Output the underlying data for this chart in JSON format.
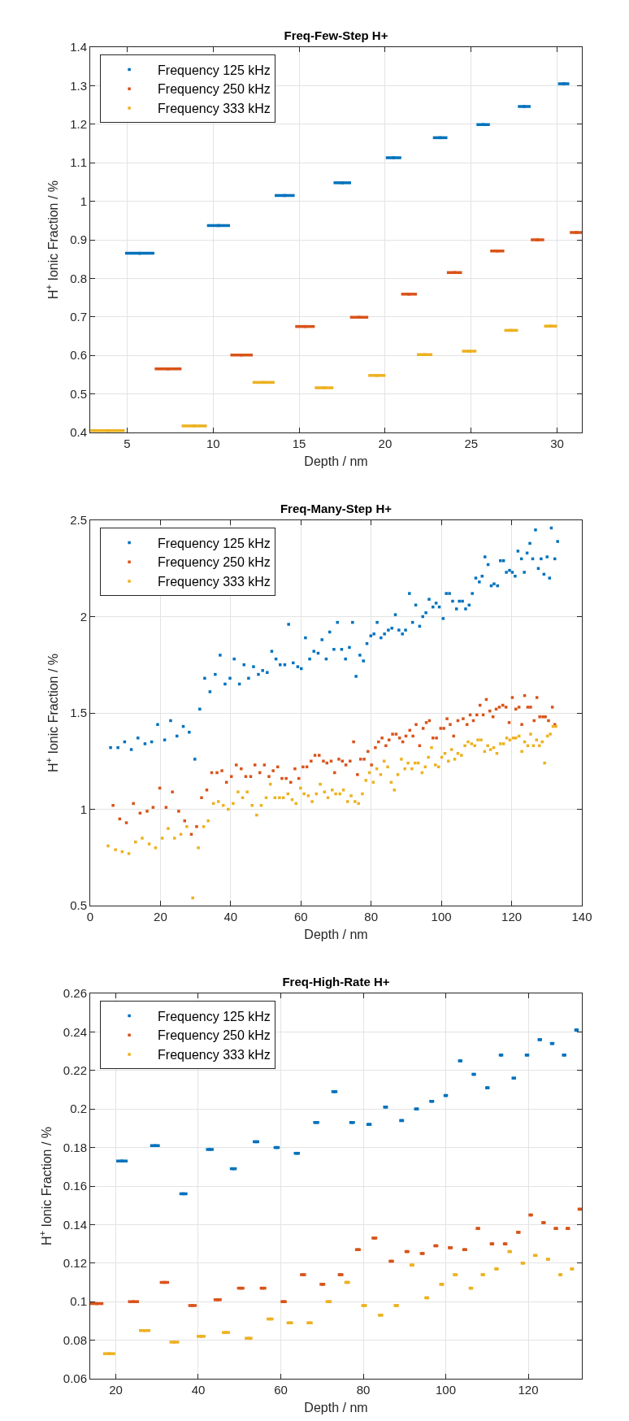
{
  "chart_data": [
    {
      "type": "scatter",
      "title": "Freq-Few-Step H+",
      "xlabel": "Depth / nm",
      "ylabel": "H$^{+}$ Ionic Fraction / %",
      "xlim": [
        2.85,
        31.44
      ],
      "xticks": [
        5,
        10,
        15,
        20,
        25,
        30
      ],
      "ylim": [
        0.4,
        1.4
      ],
      "yticks": [
        0.4,
        0.5,
        0.6,
        0.7,
        0.8,
        0.9,
        1,
        1.1,
        1.2,
        1.3,
        1.4
      ],
      "grid": true,
      "legend": "top left",
      "series": [
        {
          "name": "Frequency 125 kHz",
          "color": "#0072bd",
          "x": [
            5.73,
            10.31,
            14.16,
            17.51,
            20.49,
            23.2,
            25.7,
            28.09,
            30.38
          ],
          "values": [
            0.865,
            0.937,
            1.015,
            1.048,
            1.113,
            1.165,
            1.199,
            1.246,
            1.305
          ],
          "xerrors": [
            0.85,
            0.67,
            0.58,
            0.51,
            0.45,
            0.42,
            0.39,
            0.37,
            0.33
          ]
        },
        {
          "name": "Frequency 250 kHz",
          "color": "#d95319",
          "x": [
            7.38,
            11.65,
            15.34,
            18.49,
            21.39,
            24.03,
            26.52,
            28.86,
            31.11
          ],
          "values": [
            0.565,
            0.601,
            0.675,
            0.699,
            0.759,
            0.815,
            0.871,
            0.9,
            0.919
          ],
          "xerrors": [
            0.78,
            0.65,
            0.57,
            0.53,
            0.46,
            0.44,
            0.41,
            0.39,
            0.37
          ]
        },
        {
          "name": "Frequency 333 kHz",
          "color": "#edb120",
          "x": [
            3.86,
            8.9,
            12.93,
            16.45,
            19.52,
            22.3,
            24.89,
            27.33,
            29.62
          ],
          "values": [
            0.405,
            0.417,
            0.53,
            0.516,
            0.548,
            0.602,
            0.611,
            0.665,
            0.676
          ],
          "xerrors": [
            1.0,
            0.73,
            0.64,
            0.54,
            0.5,
            0.45,
            0.42,
            0.4,
            0.38
          ]
        }
      ]
    },
    {
      "type": "scatter",
      "title": "Freq-Many-Step H+",
      "xlabel": "Depth / nm",
      "ylabel": "H$^{+}$ Ionic Fraction / %",
      "xlim": [
        0,
        140
      ],
      "xticks": [
        0,
        20,
        40,
        60,
        80,
        100,
        120,
        140
      ],
      "ylim": [
        0.5,
        2.5
      ],
      "yticks": [
        0.5,
        1,
        1.5,
        2,
        2.5
      ],
      "grid": true,
      "legend": "top left",
      "marker": "square",
      "series": [
        {
          "name": "Frequency 125 kHz",
          "color": "#0072bd",
          "x": [
            5.8,
            7.9,
            9.8,
            11.7,
            13.6,
            15.6,
            17.5,
            19.2,
            21.2,
            22.9,
            24.7,
            26.5,
            28.2,
            29.8,
            31.2,
            32.6,
            34.1,
            35.6,
            37.0,
            38.4,
            39.8,
            41.0,
            42.5,
            43.8,
            45.1,
            46.5,
            47.9,
            49.1,
            50.4,
            51.7,
            52.9,
            54.1,
            55.4,
            56.5,
            57.8,
            59.1,
            60.1,
            61.3,
            62.5,
            63.7,
            64.9,
            66.0,
            67.2,
            68.2,
            69.4,
            70.4,
            71.6,
            72.7,
            73.8,
            74.7,
            75.7,
            76.8,
            77.8,
            78.8,
            79.9,
            80.8,
            81.7,
            82.8,
            83.8,
            84.9,
            85.9,
            86.9,
            87.9,
            88.9,
            89.8,
            90.9,
            91.8,
            92.7,
            93.8,
            94.7,
            95.6,
            96.5,
            97.6,
            98.5,
            99.4,
            100.5,
            101.4,
            102.3,
            103.2,
            104.3,
            105.1,
            106.0,
            106.9,
            107.9,
            108.8,
            109.8,
            110.8,
            111.6,
            112.4,
            113.3,
            114.2,
            115.0,
            116.0,
            116.8,
            117.7,
            118.5,
            119.4,
            120.2,
            121.0,
            121.8,
            122.8,
            123.6,
            124.4,
            125.2,
            126.0,
            126.8,
            127.6,
            128.4,
            129.2,
            130.1,
            130.8,
            131.3,
            132.3,
            133.1
          ],
          "values": [
            1.32,
            1.32,
            1.35,
            1.31,
            1.37,
            1.34,
            1.35,
            1.44,
            1.36,
            1.46,
            1.38,
            1.43,
            1.4,
            1.26,
            1.52,
            1.68,
            1.61,
            1.7,
            1.8,
            1.65,
            1.68,
            1.78,
            1.65,
            1.75,
            1.68,
            1.74,
            1.7,
            1.72,
            1.71,
            1.82,
            1.78,
            1.75,
            1.75,
            1.96,
            1.76,
            1.74,
            1.73,
            1.89,
            1.78,
            1.82,
            1.81,
            1.88,
            1.78,
            1.92,
            1.83,
            1.97,
            1.83,
            1.78,
            1.84,
            1.97,
            1.69,
            1.8,
            1.77,
            1.86,
            1.9,
            1.91,
            1.97,
            1.89,
            1.91,
            1.93,
            1.94,
            2.01,
            1.93,
            1.91,
            1.93,
            2.12,
            1.97,
            2.06,
            1.95,
            2.0,
            2.02,
            2.09,
            2.05,
            2.07,
            2.05,
            1.99,
            2.12,
            2.12,
            2.08,
            2.04,
            2.08,
            2.08,
            2.04,
            2.06,
            2.12,
            2.2,
            2.18,
            2.21,
            2.31,
            2.27,
            2.16,
            2.17,
            2.16,
            2.29,
            2.29,
            2.23,
            2.24,
            2.23,
            2.21,
            2.34,
            2.3,
            2.23,
            2.33,
            2.38,
            2.3,
            2.45,
            2.25,
            2.3,
            2.22,
            2.31,
            2.2,
            2.46,
            2.3,
            2.39
          ]
        },
        {
          "name": "Frequency 250 kHz",
          "color": "#d95319",
          "x": [
            6.5,
            8.4,
            10.3,
            12.3,
            14.2,
            16.2,
            17.9,
            19.8,
            21.6,
            23.4,
            25.2,
            26.9,
            28.8,
            30.3,
            31.7,
            33.2,
            34.6,
            36.1,
            37.5,
            38.8,
            40.2,
            41.6,
            43.0,
            44.3,
            45.7,
            46.9,
            48.3,
            49.6,
            50.9,
            52.1,
            53.4,
            54.6,
            55.8,
            57.1,
            58.3,
            59.4,
            60.6,
            61.7,
            62.9,
            64.0,
            65.2,
            66.4,
            67.4,
            68.6,
            69.6,
            70.8,
            71.8,
            72.8,
            74.0,
            75.0,
            76.1,
            77.0,
            78.0,
            79.1,
            80.1,
            81.2,
            82.1,
            83.1,
            84.2,
            85.1,
            86.1,
            87.1,
            88.1,
            89.0,
            89.9,
            91.0,
            91.9,
            92.8,
            93.8,
            94.8,
            95.7,
            96.6,
            97.6,
            98.6,
            99.8,
            100.7,
            101.6,
            102.5,
            103.5,
            104.7,
            106.2,
            107.3,
            108.2,
            109.1,
            110.1,
            111.0,
            111.9,
            112.8,
            113.8,
            114.7,
            115.6,
            116.5,
            117.5,
            118.4,
            119.3,
            120.2,
            121.2,
            122.1,
            122.9,
            123.7,
            124.6,
            125.4,
            126.4,
            127.2,
            128.0,
            128.9,
            129.6,
            130.5,
            131.6,
            132.3
          ],
          "values": [
            1.02,
            0.95,
            0.93,
            1.03,
            0.98,
            0.99,
            1.01,
            1.11,
            1.01,
            1.09,
            0.99,
            0.94,
            0.87,
            0.91,
            1.06,
            1.1,
            1.19,
            1.19,
            1.2,
            1.14,
            1.17,
            1.23,
            1.21,
            1.17,
            1.17,
            1.23,
            1.19,
            1.23,
            1.17,
            1.2,
            1.22,
            1.16,
            1.16,
            1.14,
            1.21,
            1.16,
            1.22,
            1.22,
            1.25,
            1.28,
            1.28,
            1.25,
            1.24,
            1.25,
            1.19,
            1.26,
            1.25,
            1.23,
            1.25,
            1.35,
            1.18,
            1.26,
            1.26,
            1.3,
            1.23,
            1.32,
            1.35,
            1.37,
            1.33,
            1.36,
            1.39,
            1.39,
            1.37,
            1.35,
            1.38,
            1.41,
            1.38,
            1.44,
            1.33,
            1.42,
            1.45,
            1.46,
            1.37,
            1.37,
            1.42,
            1.42,
            1.47,
            1.44,
            1.38,
            1.46,
            1.47,
            1.44,
            1.49,
            1.46,
            1.49,
            1.54,
            1.49,
            1.57,
            1.51,
            1.48,
            1.52,
            1.53,
            1.54,
            1.53,
            1.45,
            1.58,
            1.52,
            1.53,
            1.44,
            1.59,
            1.53,
            1.53,
            1.46,
            1.58,
            1.48,
            1.48,
            1.48,
            1.46,
            1.53,
            1.44
          ]
        },
        {
          "name": "Frequency 333 kHz",
          "color": "#edb120",
          "x": [
            5.1,
            7.2,
            9.1,
            11.0,
            12.9,
            14.8,
            16.8,
            18.6,
            20.5,
            22.2,
            24.0,
            25.8,
            27.5,
            29.2,
            30.8,
            32.3,
            33.6,
            35.1,
            36.5,
            37.9,
            39.3,
            40.7,
            42.1,
            43.4,
            44.7,
            46.1,
            47.4,
            48.7,
            50.1,
            51.3,
            52.6,
            53.9,
            55.0,
            56.3,
            57.5,
            58.6,
            59.9,
            60.9,
            62.1,
            63.2,
            64.4,
            65.5,
            66.7,
            67.7,
            68.9,
            69.9,
            71.1,
            72.1,
            73.3,
            74.3,
            75.4,
            76.4,
            77.5,
            78.5,
            79.5,
            80.6,
            81.6,
            82.7,
            83.7,
            84.7,
            85.7,
            86.6,
            87.6,
            88.6,
            89.6,
            90.5,
            91.6,
            92.5,
            93.4,
            94.5,
            95.4,
            96.3,
            97.2,
            98.3,
            99.2,
            100.1,
            101.0,
            102.0,
            102.9,
            103.8,
            104.7,
            105.7,
            106.7,
            107.6,
            108.6,
            109.5,
            110.4,
            111.3,
            112.3,
            113.2,
            114.0,
            114.9,
            115.8,
            116.8,
            117.7,
            118.6,
            119.5,
            120.5,
            121.2,
            122.1,
            122.9,
            123.7,
            124.6,
            125.4,
            126.2,
            127.1,
            127.9,
            128.7,
            129.4,
            130.2,
            131.0,
            131.8,
            132.6
          ],
          "values": [
            0.81,
            0.79,
            0.78,
            0.77,
            0.83,
            0.85,
            0.82,
            0.8,
            0.85,
            0.9,
            0.85,
            0.87,
            0.91,
            0.54,
            0.8,
            0.91,
            0.94,
            1.03,
            1.04,
            1.02,
            1.0,
            1.03,
            1.09,
            1.06,
            1.09,
            1.02,
            0.97,
            1.02,
            1.06,
            1.13,
            1.06,
            1.06,
            1.06,
            1.08,
            1.05,
            1.03,
            1.11,
            1.08,
            1.07,
            1.04,
            1.08,
            1.13,
            1.09,
            1.06,
            1.1,
            1.08,
            1.08,
            1.1,
            1.04,
            1.07,
            1.04,
            1.03,
            1.08,
            1.15,
            1.19,
            1.14,
            1.21,
            1.18,
            1.25,
            1.22,
            1.14,
            1.1,
            1.18,
            1.26,
            1.21,
            1.24,
            1.21,
            1.24,
            1.24,
            1.19,
            1.22,
            1.27,
            1.32,
            1.23,
            1.22,
            1.27,
            1.29,
            1.25,
            1.31,
            1.26,
            1.29,
            1.28,
            1.33,
            1.35,
            1.34,
            1.33,
            1.36,
            1.36,
            1.3,
            1.33,
            1.31,
            1.32,
            1.29,
            1.34,
            1.34,
            1.37,
            1.36,
            1.37,
            1.37,
            1.38,
            1.3,
            1.35,
            1.33,
            1.39,
            1.33,
            1.36,
            1.33,
            1.35,
            1.24,
            1.38,
            1.39,
            1.43,
            1.43
          ]
        }
      ]
    },
    {
      "type": "scatter",
      "title": "Freq-High-Rate H+",
      "xlabel": "Depth / nm",
      "ylabel": "H$^{+}$ Ionic Fraction / %",
      "xlim": [
        13.8,
        133.0
      ],
      "xticks": [
        20,
        40,
        60,
        80,
        100,
        120
      ],
      "ylim": [
        0.06,
        0.26
      ],
      "yticks": [
        0.06,
        0.08,
        0.1,
        0.12,
        0.14,
        0.16,
        0.18,
        0.2,
        0.22,
        0.24,
        0.26
      ],
      "grid": true,
      "legend": "top left",
      "series": [
        {
          "name": "Frequency 125 kHz",
          "color": "#0072bd",
          "x": [
            21.5,
            29.5,
            36.4,
            42.8,
            48.5,
            54.0,
            59.0,
            63.9,
            68.6,
            73.0,
            77.3,
            81.4,
            85.4,
            89.3,
            92.9,
            96.6,
            100.0,
            103.5,
            106.8,
            110.1,
            113.4,
            116.5,
            119.7,
            122.8,
            125.8,
            128.7,
            131.7
          ],
          "values": [
            0.173,
            0.181,
            0.156,
            0.179,
            0.169,
            0.183,
            0.18,
            0.177,
            0.193,
            0.209,
            0.193,
            0.192,
            0.201,
            0.194,
            0.2,
            0.204,
            0.207,
            0.225,
            0.218,
            0.211,
            0.228,
            0.216,
            0.228,
            0.236,
            0.234,
            0.228,
            0.241
          ],
          "xerrors": [
            1.38,
            1.18,
            0.98,
            0.94,
            0.84,
            0.79,
            0.74,
            0.74,
            0.74,
            0.74,
            0.69,
            0.64,
            0.59,
            0.59,
            0.59,
            0.59,
            0.54,
            0.54,
            0.54,
            0.54,
            0.54,
            0.54,
            0.54,
            0.54,
            0.54,
            0.54,
            0.54
          ]
        },
        {
          "name": "Frequency 250 kHz",
          "color": "#d95319",
          "x": [
            15.4,
            24.3,
            31.8,
            38.6,
            44.7,
            50.3,
            55.7,
            60.7,
            65.4,
            70.1,
            74.5,
            78.7,
            82.7,
            86.8,
            90.6,
            94.3,
            97.6,
            101.1,
            104.6,
            107.8,
            111.2,
            114.4,
            117.6,
            120.6,
            123.7,
            126.7,
            129.6,
            132.5
          ],
          "values": [
            0.099,
            0.1,
            0.11,
            0.098,
            0.101,
            0.107,
            0.107,
            0.1,
            0.114,
            0.109,
            0.114,
            0.127,
            0.133,
            0.121,
            0.126,
            0.125,
            0.129,
            0.128,
            0.127,
            0.138,
            0.13,
            0.13,
            0.136,
            0.145,
            0.141,
            0.138,
            0.138,
            0.148
          ],
          "xerrors": [
            1.6,
            1.33,
            1.13,
            1.03,
            0.98,
            0.89,
            0.79,
            0.74,
            0.74,
            0.69,
            0.69,
            0.69,
            0.69,
            0.64,
            0.59,
            0.59,
            0.59,
            0.59,
            0.59,
            0.54,
            0.54,
            0.54,
            0.54,
            0.54,
            0.54,
            0.54,
            0.54,
            0.54
          ]
        },
        {
          "name": "Frequency 333 kHz",
          "color": "#edb120",
          "x": [
            18.4,
            27.0,
            34.2,
            40.7,
            46.7,
            52.2,
            57.4,
            62.2,
            67.0,
            71.6,
            76.1,
            80.2,
            84.2,
            88.0,
            91.8,
            95.4,
            99.0,
            102.3,
            106.1,
            109.0,
            112.3,
            115.5,
            118.7,
            121.7,
            124.8,
            127.8,
            130.6
          ],
          "values": [
            0.073,
            0.085,
            0.079,
            0.082,
            0.084,
            0.081,
            0.091,
            0.089,
            0.089,
            0.1,
            0.11,
            0.098,
            0.093,
            0.098,
            0.119,
            0.102,
            0.109,
            0.114,
            0.107,
            0.114,
            0.117,
            0.126,
            0.12,
            0.124,
            0.122,
            0.114,
            0.117
          ],
          "xerrors": [
            1.48,
            1.38,
            1.18,
            1.08,
            0.98,
            0.94,
            0.84,
            0.79,
            0.74,
            0.74,
            0.69,
            0.69,
            0.64,
            0.64,
            0.59,
            0.59,
            0.59,
            0.59,
            0.54,
            0.54,
            0.54,
            0.54,
            0.54,
            0.54,
            0.49,
            0.49,
            0.49
          ]
        }
      ]
    }
  ]
}
